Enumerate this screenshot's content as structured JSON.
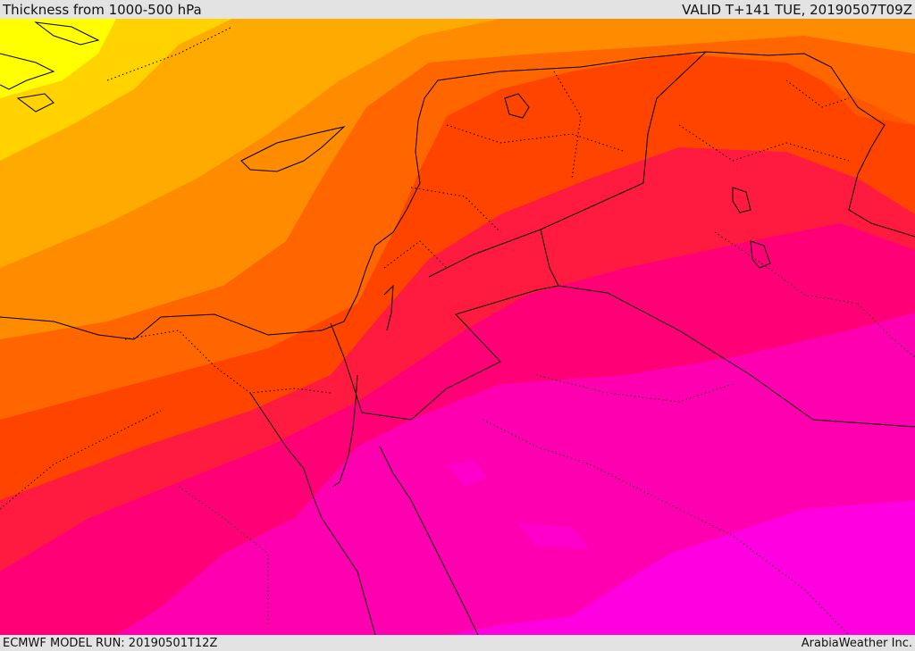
{
  "header": {
    "title": "Thickness from 1000-500 hPa",
    "valid": "VALID T+141 TUE, 20190507T09Z"
  },
  "footer": {
    "model_run": "ECMWF MODEL RUN: 20190501T12Z",
    "credit": "ArabiaWeather Inc."
  },
  "map": {
    "layer": "1000-500 hPa thickness",
    "colors": [
      "#ffff00",
      "#ffd200",
      "#ffaa00",
      "#ff8c00",
      "#ff6600",
      "#ff4400",
      "#ff1a40",
      "#ff0077",
      "#ff00b0",
      "#ff00e0"
    ],
    "border_color": "#000000"
  }
}
